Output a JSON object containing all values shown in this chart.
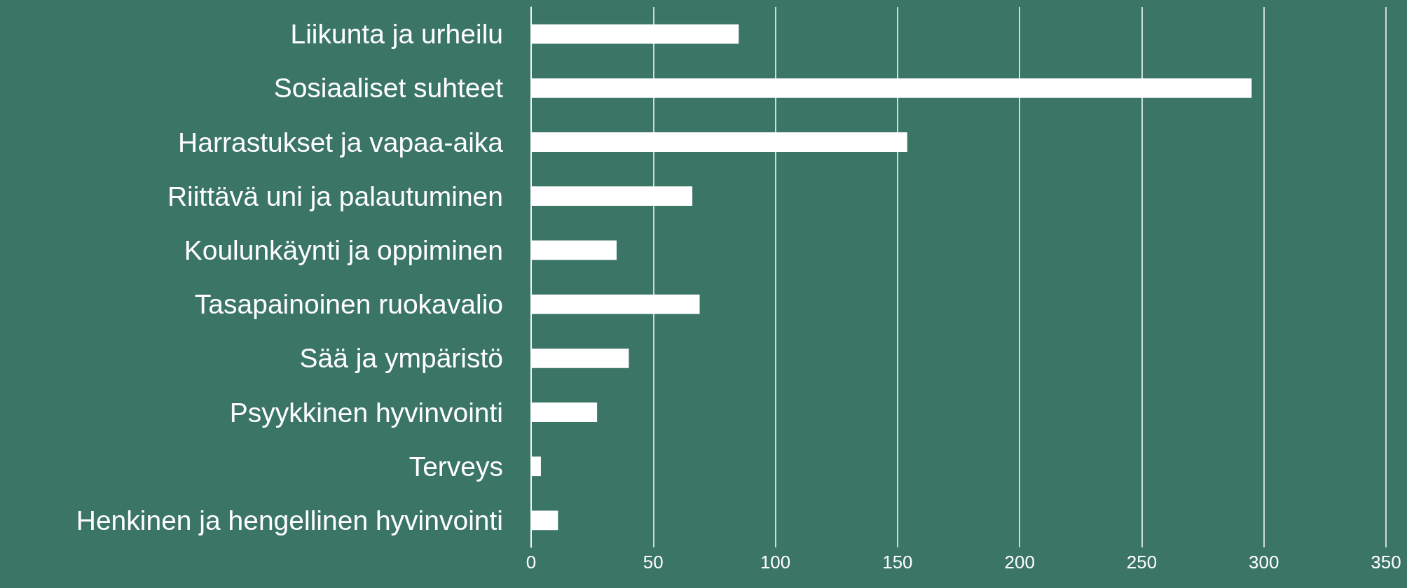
{
  "chart_data": {
    "type": "bar",
    "orientation": "horizontal",
    "categories": [
      "Liikunta ja urheilu",
      "Sosiaaliset suhteet",
      "Harrastukset ja vapaa-aika",
      "Riittävä uni ja palautuminen",
      "Koulunkäynti ja oppiminen",
      "Tasapainoinen ruokavalio",
      "Sää ja ympäristö",
      "Psyykkinen hyvinvointi",
      "Terveys",
      "Henkinen ja hengellinen hyvinvointi"
    ],
    "values": [
      85,
      295,
      154,
      66,
      35,
      69,
      40,
      27,
      4,
      11
    ],
    "color": "#ffffff",
    "xlim": [
      0,
      350
    ],
    "xticks": [
      0,
      50,
      100,
      150,
      200,
      250,
      300,
      350
    ],
    "grid": "x"
  }
}
